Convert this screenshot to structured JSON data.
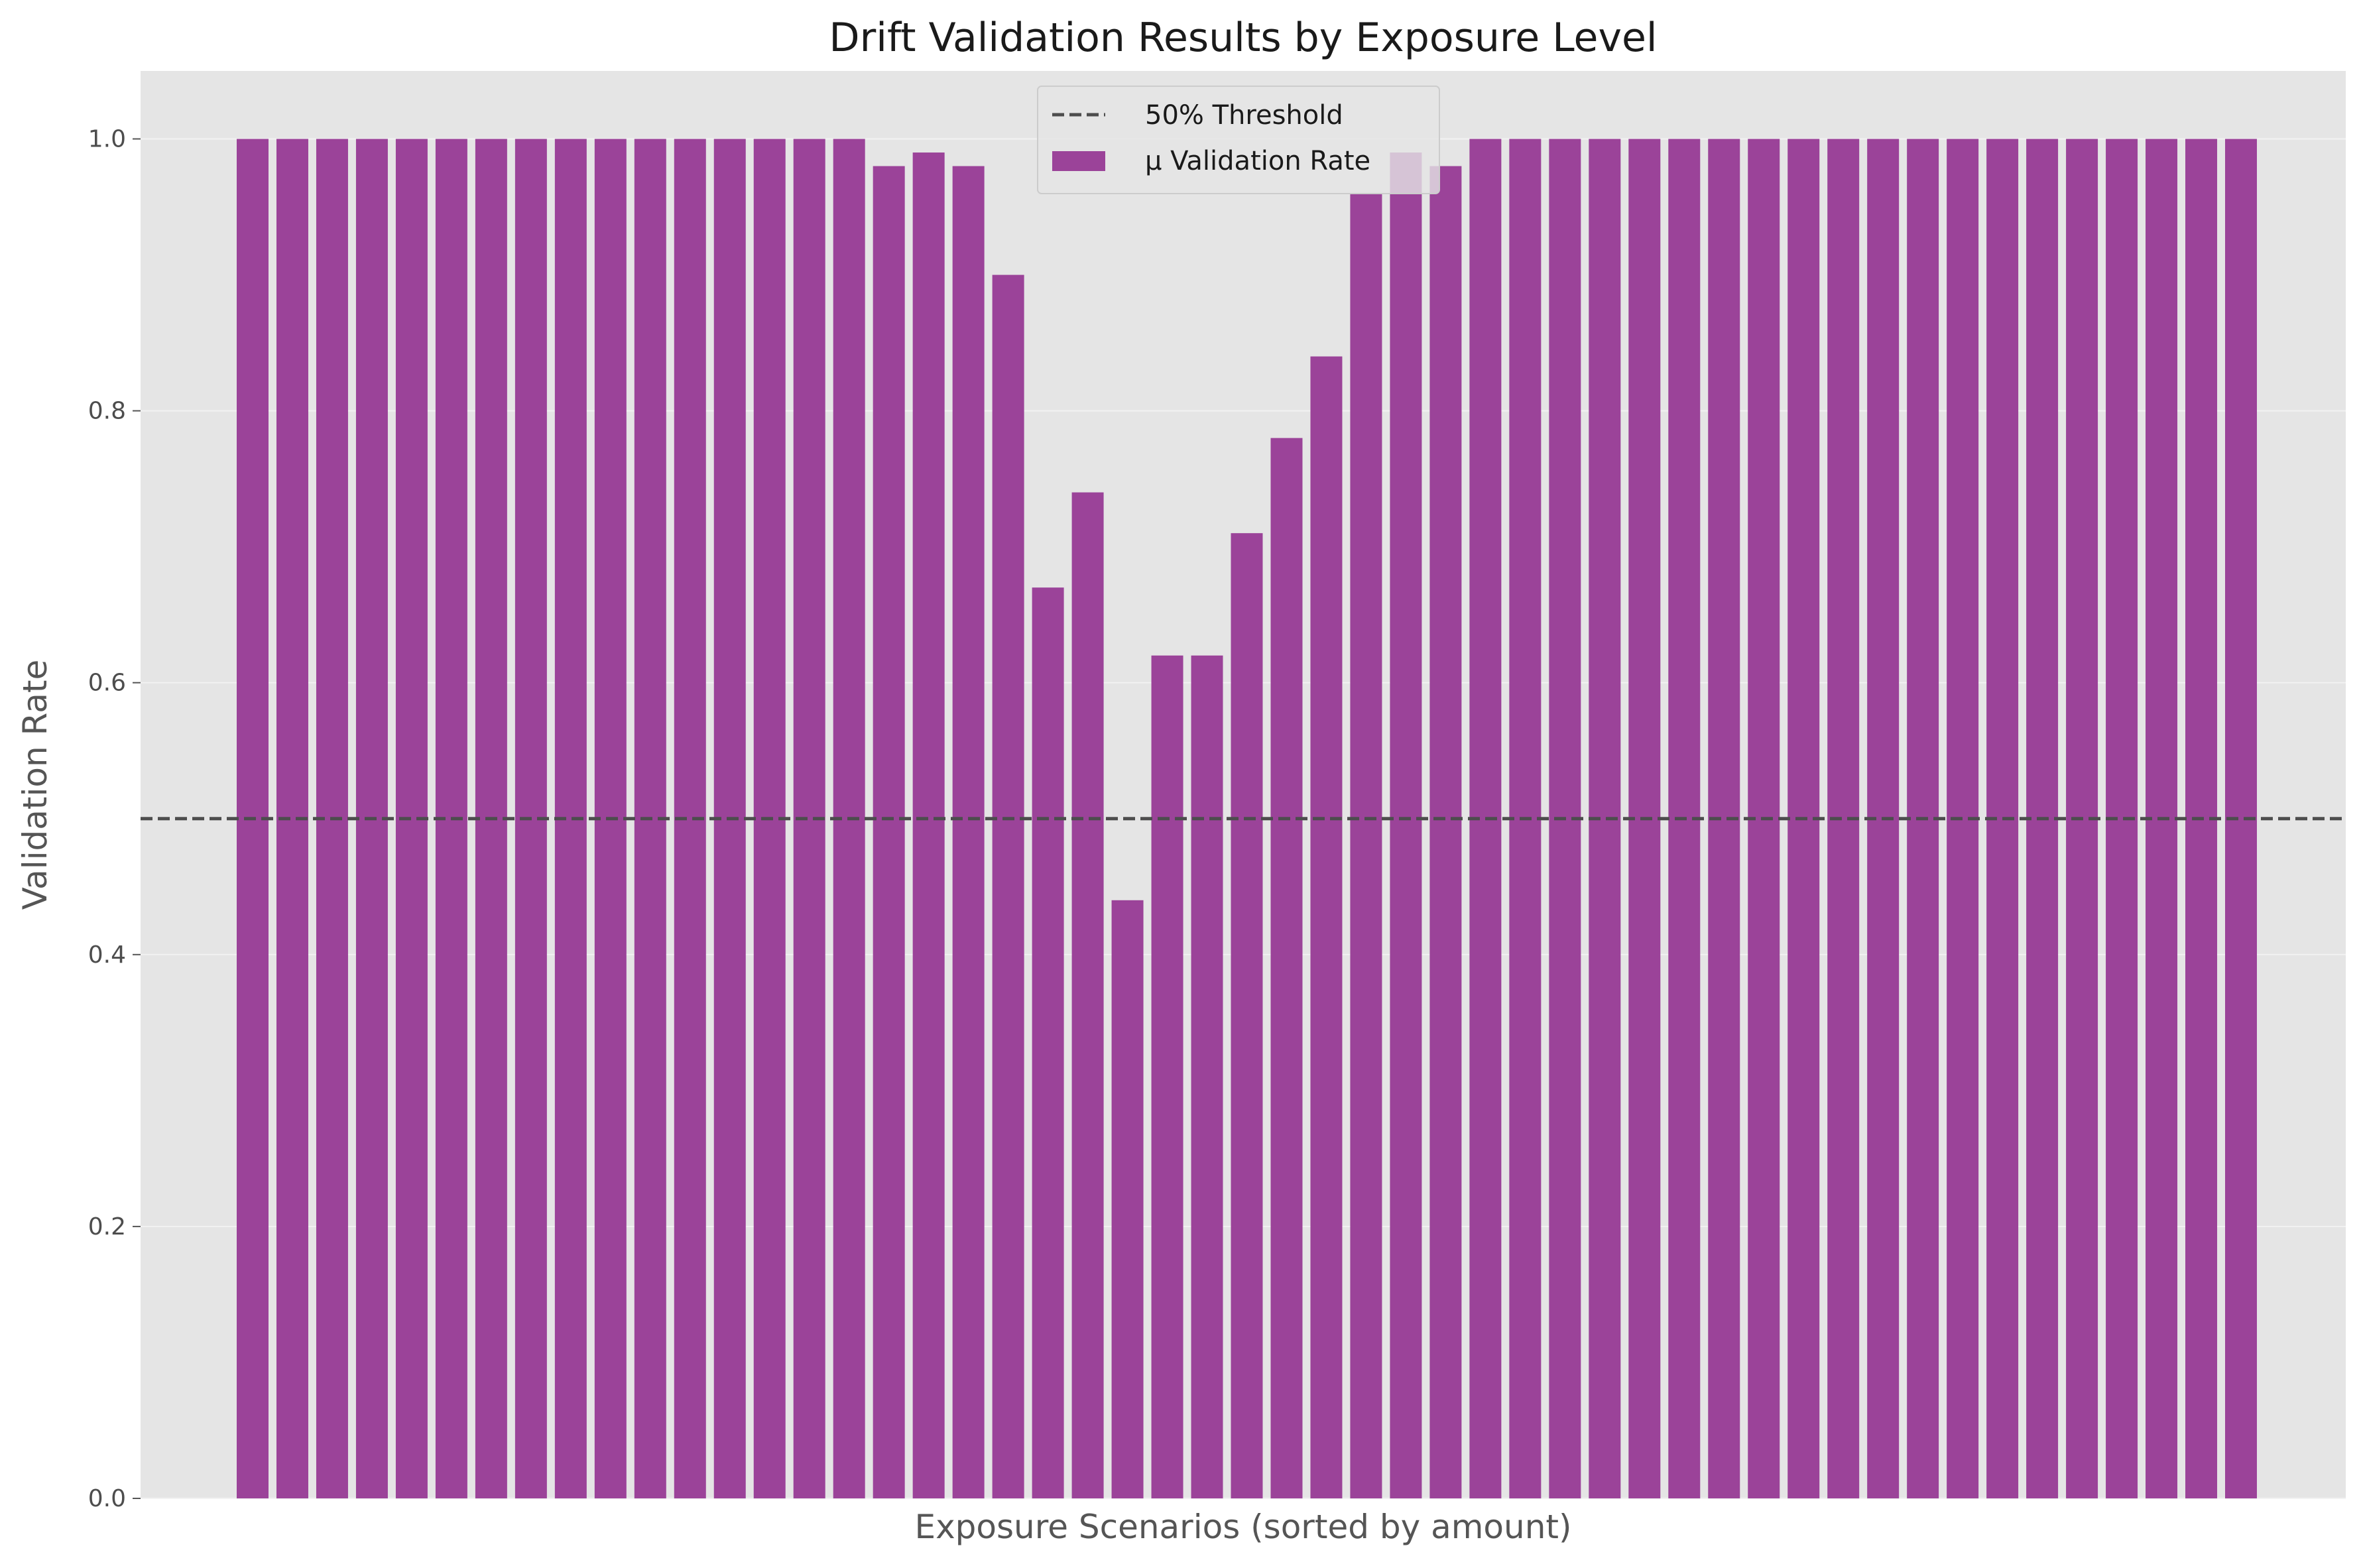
{
  "chart_data": {
    "type": "bar",
    "title": "Drift Validation Results by Exposure Level",
    "xlabel": "Exposure Scenarios (sorted by amount)",
    "ylabel": "Validation Rate",
    "ylim": [
      0,
      1.05
    ],
    "yticks": [
      "0.0",
      "0.2",
      "0.4",
      "0.6",
      "0.8",
      "1.0"
    ],
    "grid": true,
    "legend_position": "top-center",
    "series": [
      {
        "name": "μ Validation Rate",
        "color": "#9b4399",
        "values": [
          1.0,
          1.0,
          1.0,
          1.0,
          1.0,
          1.0,
          1.0,
          1.0,
          1.0,
          1.0,
          1.0,
          1.0,
          1.0,
          1.0,
          1.0,
          1.0,
          0.98,
          0.99,
          0.98,
          0.9,
          0.67,
          0.74,
          0.44,
          0.62,
          0.62,
          0.71,
          0.78,
          0.84,
          0.96,
          0.99,
          0.98,
          1.0,
          1.0,
          1.0,
          1.0,
          1.0,
          1.0,
          1.0,
          1.0,
          1.0,
          1.0,
          1.0,
          1.0,
          1.0,
          1.0,
          1.0,
          1.0,
          1.0,
          1.0,
          1.0,
          1.0
        ]
      }
    ],
    "threshold": {
      "label": "50% Threshold",
      "value": 0.5,
      "color": "#4d4d4d",
      "style": "dashed"
    }
  }
}
